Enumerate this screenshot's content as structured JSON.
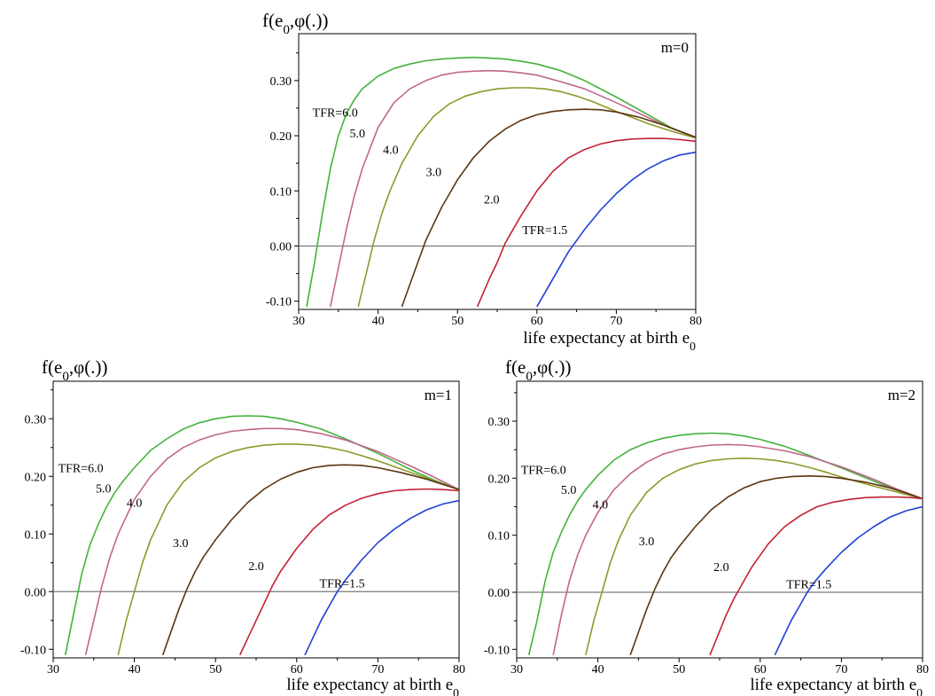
{
  "chart_data": [
    {
      "type": "line",
      "panel_label": "m=0",
      "ylabel": "f(e0,φ(.))",
      "xlabel": "life expectancy at birth e0",
      "xlim": [
        30,
        80
      ],
      "ylim": [
        -0.115,
        0.385
      ],
      "xticks": [
        30,
        40,
        50,
        60,
        70,
        80
      ],
      "yticks": [
        -0.1,
        0.0,
        0.1,
        0.2,
        0.3
      ],
      "ytick_labels": [
        "-0.10",
        "0.00",
        "0.10",
        "0.20",
        "0.30"
      ],
      "zero_line": true,
      "series": [
        {
          "label": "TFR=6.0",
          "color": "#44b23a",
          "label_at": [
            34.6,
            0.243
          ],
          "x": [
            31.0,
            32.0,
            33.0,
            34.0,
            35.0,
            36.0,
            37.0,
            38.0,
            40.0,
            42.0,
            44.0,
            46.0,
            48.0,
            50.0,
            52.0,
            54.0,
            56.0,
            58.0,
            60.0,
            63.0,
            66.0,
            70.0,
            74.0,
            77.0,
            80.0
          ],
          "y": [
            -0.11,
            -0.03,
            0.06,
            0.14,
            0.2,
            0.24,
            0.265,
            0.285,
            0.308,
            0.322,
            0.33,
            0.336,
            0.339,
            0.341,
            0.342,
            0.341,
            0.339,
            0.335,
            0.33,
            0.318,
            0.3,
            0.27,
            0.238,
            0.214,
            0.197
          ]
        },
        {
          "label": "5.0",
          "color": "#c0668c",
          "label_at": [
            37.4,
            0.205
          ],
          "x": [
            34.0,
            35.0,
            36.0,
            37.0,
            38.0,
            40.0,
            42.0,
            44.0,
            46.0,
            48.0,
            50.0,
            52.0,
            54.0,
            56.0,
            58.0,
            60.0,
            63.0,
            66.0,
            70.0,
            74.0,
            77.0,
            80.0
          ],
          "y": [
            -0.11,
            -0.04,
            0.03,
            0.09,
            0.14,
            0.215,
            0.26,
            0.285,
            0.3,
            0.31,
            0.315,
            0.317,
            0.318,
            0.317,
            0.314,
            0.31,
            0.298,
            0.285,
            0.26,
            0.233,
            0.213,
            0.197
          ]
        },
        {
          "label": "4.0",
          "color": "#8c9a2a",
          "label_at": [
            41.6,
            0.175
          ],
          "x": [
            37.5,
            38.5,
            39.5,
            40.5,
            41.5,
            43.0,
            45.0,
            47.0,
            49.0,
            51.0,
            53.0,
            55.0,
            57.0,
            59.0,
            61.0,
            63.0,
            65.0,
            67.0,
            70.0,
            74.0,
            77.0,
            80.0
          ],
          "y": [
            -0.11,
            -0.05,
            0.01,
            0.06,
            0.1,
            0.15,
            0.2,
            0.235,
            0.258,
            0.272,
            0.28,
            0.285,
            0.287,
            0.287,
            0.285,
            0.28,
            0.272,
            0.262,
            0.244,
            0.222,
            0.208,
            0.196
          ]
        },
        {
          "label": "3.0",
          "color": "#5a3510",
          "label_at": [
            47.0,
            0.135
          ],
          "x": [
            43.0,
            44.0,
            45.0,
            46.0,
            47.0,
            48.0,
            50.0,
            52.0,
            54.0,
            56.0,
            58.0,
            60.0,
            62.0,
            64.0,
            66.0,
            68.0,
            70.0,
            73.0,
            76.0,
            78.0,
            80.0
          ],
          "y": [
            -0.11,
            -0.07,
            -0.03,
            0.01,
            0.04,
            0.07,
            0.12,
            0.16,
            0.19,
            0.212,
            0.228,
            0.238,
            0.244,
            0.247,
            0.248,
            0.247,
            0.243,
            0.233,
            0.219,
            0.208,
            0.197
          ]
        },
        {
          "label": "2.0",
          "color": "#c42035",
          "label_at": [
            54.3,
            0.085
          ],
          "x": [
            52.5,
            54.0,
            55.0,
            56.0,
            57.0,
            58.0,
            60.0,
            62.0,
            64.0,
            66.0,
            68.0,
            70.0,
            72.0,
            74.0,
            76.0,
            78.0,
            80.0
          ],
          "y": [
            -0.11,
            -0.06,
            -0.03,
            0.005,
            0.03,
            0.055,
            0.1,
            0.135,
            0.16,
            0.175,
            0.185,
            0.191,
            0.194,
            0.195,
            0.195,
            0.193,
            0.19
          ]
        },
        {
          "label": "TFR=1.5",
          "color": "#2040d8",
          "label_at": [
            61.0,
            0.03
          ],
          "x": [
            60.0,
            61.0,
            62.0,
            63.0,
            64.0,
            65.0,
            66.0,
            68.0,
            70.0,
            72.0,
            74.0,
            76.0,
            78.0,
            80.0
          ],
          "y": [
            -0.11,
            -0.085,
            -0.06,
            -0.035,
            -0.01,
            0.01,
            0.03,
            0.065,
            0.095,
            0.12,
            0.14,
            0.155,
            0.165,
            0.17
          ]
        }
      ]
    },
    {
      "type": "line",
      "panel_label": "m=1",
      "ylabel": "f(e0,φ(.))",
      "xlabel": "life expectancy at birth e0",
      "xlim": [
        30,
        80
      ],
      "ylim": [
        -0.115,
        0.365
      ],
      "xticks": [
        30,
        40,
        50,
        60,
        70,
        80
      ],
      "yticks": [
        -0.1,
        0.0,
        0.1,
        0.2,
        0.3
      ],
      "ytick_labels": [
        "-0.10",
        "0.00",
        "0.10",
        "0.20",
        "0.30"
      ],
      "zero_line": true,
      "series": [
        {
          "label": "TFR=6.0",
          "color": "#44b23a",
          "label_at": [
            33.4,
            0.215
          ],
          "x": [
            31.5,
            32.5,
            33.5,
            34.5,
            35.5,
            36.5,
            37.5,
            38.5,
            40.0,
            42.0,
            44.0,
            46.0,
            48.0,
            50.0,
            52.0,
            54.0,
            56.0,
            58.0,
            60.0,
            63.0,
            66.0,
            70.0,
            74.0,
            77.0,
            80.0
          ],
          "y": [
            -0.11,
            -0.04,
            0.03,
            0.08,
            0.115,
            0.145,
            0.17,
            0.19,
            0.215,
            0.245,
            0.265,
            0.282,
            0.293,
            0.3,
            0.304,
            0.305,
            0.304,
            0.3,
            0.294,
            0.282,
            0.265,
            0.24,
            0.212,
            0.193,
            0.177
          ]
        },
        {
          "label": "5.0",
          "color": "#c0668c",
          "label_at": [
            36.2,
            0.18
          ],
          "x": [
            34.0,
            35.0,
            36.0,
            37.0,
            38.0,
            40.0,
            42.0,
            44.0,
            46.0,
            48.0,
            50.0,
            52.0,
            54.0,
            56.0,
            58.0,
            60.0,
            63.0,
            66.0,
            70.0,
            74.0,
            77.0,
            80.0
          ],
          "y": [
            -0.11,
            -0.05,
            0.01,
            0.06,
            0.1,
            0.16,
            0.2,
            0.23,
            0.25,
            0.263,
            0.272,
            0.278,
            0.281,
            0.283,
            0.283,
            0.281,
            0.274,
            0.263,
            0.243,
            0.218,
            0.198,
            0.177
          ]
        },
        {
          "label": "4.0",
          "color": "#8c9a2a",
          "label_at": [
            40.0,
            0.155
          ],
          "x": [
            38.0,
            39.0,
            40.0,
            41.0,
            42.0,
            44.0,
            46.0,
            48.0,
            50.0,
            52.0,
            54.0,
            56.0,
            58.0,
            60.0,
            62.0,
            64.0,
            66.0,
            68.0,
            70.0,
            74.0,
            77.0,
            80.0
          ],
          "y": [
            -0.11,
            -0.05,
            0.0,
            0.05,
            0.09,
            0.15,
            0.19,
            0.215,
            0.232,
            0.243,
            0.25,
            0.254,
            0.256,
            0.256,
            0.254,
            0.25,
            0.244,
            0.236,
            0.227,
            0.207,
            0.192,
            0.177
          ]
        },
        {
          "label": "3.0",
          "color": "#5a3510",
          "label_at": [
            45.7,
            0.085
          ],
          "x": [
            43.5,
            44.5,
            45.5,
            46.5,
            47.5,
            48.5,
            50.0,
            52.0,
            54.0,
            56.0,
            58.0,
            60.0,
            62.0,
            64.0,
            66.0,
            68.0,
            70.0,
            73.0,
            76.0,
            78.0,
            80.0
          ],
          "y": [
            -0.11,
            -0.07,
            -0.03,
            0.005,
            0.035,
            0.06,
            0.09,
            0.125,
            0.155,
            0.178,
            0.195,
            0.207,
            0.215,
            0.219,
            0.22,
            0.219,
            0.215,
            0.206,
            0.195,
            0.186,
            0.177
          ]
        },
        {
          "label": "2.0",
          "color": "#c42035",
          "label_at": [
            55.0,
            0.045
          ],
          "x": [
            53.0,
            54.0,
            55.0,
            56.0,
            57.0,
            58.0,
            60.0,
            62.0,
            64.0,
            66.0,
            68.0,
            70.0,
            72.0,
            74.0,
            76.0,
            78.0,
            80.0
          ],
          "y": [
            -0.11,
            -0.08,
            -0.05,
            -0.02,
            0.01,
            0.035,
            0.075,
            0.108,
            0.133,
            0.15,
            0.162,
            0.17,
            0.175,
            0.177,
            0.178,
            0.177,
            0.175
          ]
        },
        {
          "label": "TFR=1.5",
          "color": "#2040d8",
          "label_at": [
            65.6,
            0.015
          ],
          "x": [
            61.0,
            62.0,
            63.0,
            64.0,
            65.0,
            66.0,
            68.0,
            70.0,
            72.0,
            74.0,
            76.0,
            78.0,
            80.0
          ],
          "y": [
            -0.11,
            -0.08,
            -0.05,
            -0.025,
            0.0,
            0.02,
            0.055,
            0.085,
            0.108,
            0.127,
            0.142,
            0.152,
            0.158
          ]
        }
      ]
    },
    {
      "type": "line",
      "panel_label": "m=2",
      "ylabel": "f(e0,φ(.))",
      "xlabel": "life expectancy at birth e0",
      "xlim": [
        30,
        80
      ],
      "ylim": [
        -0.115,
        0.37
      ],
      "xticks": [
        30,
        40,
        50,
        60,
        70,
        80
      ],
      "yticks": [
        -0.1,
        0.0,
        0.1,
        0.2,
        0.3
      ],
      "ytick_labels": [
        "-0.10",
        "0.00",
        "0.10",
        "0.20",
        "0.30"
      ],
      "zero_line": true,
      "series": [
        {
          "label": "TFR=6.0",
          "color": "#44b23a",
          "label_at": [
            33.3,
            0.215
          ],
          "x": [
            31.5,
            32.5,
            33.5,
            34.5,
            35.5,
            36.5,
            37.5,
            38.5,
            40.0,
            42.0,
            44.0,
            46.0,
            48.0,
            50.0,
            52.0,
            54.0,
            56.0,
            58.0,
            60.0,
            63.0,
            66.0,
            70.0,
            74.0,
            77.0,
            80.0
          ],
          "y": [
            -0.11,
            -0.05,
            0.02,
            0.07,
            0.105,
            0.135,
            0.16,
            0.18,
            0.205,
            0.232,
            0.25,
            0.262,
            0.27,
            0.275,
            0.278,
            0.279,
            0.278,
            0.274,
            0.268,
            0.256,
            0.24,
            0.218,
            0.195,
            0.178,
            0.164
          ]
        },
        {
          "label": "5.0",
          "color": "#c0668c",
          "label_at": [
            36.4,
            0.18
          ],
          "x": [
            34.5,
            35.5,
            36.5,
            37.5,
            38.5,
            40.0,
            42.0,
            44.0,
            46.0,
            48.0,
            50.0,
            52.0,
            54.0,
            56.0,
            58.0,
            60.0,
            63.0,
            66.0,
            70.0,
            74.0,
            77.0,
            80.0
          ],
          "y": [
            -0.11,
            -0.04,
            0.02,
            0.065,
            0.1,
            0.14,
            0.18,
            0.208,
            0.228,
            0.242,
            0.25,
            0.255,
            0.258,
            0.259,
            0.258,
            0.255,
            0.248,
            0.238,
            0.22,
            0.198,
            0.18,
            0.164
          ]
        },
        {
          "label": "4.0",
          "color": "#8c9a2a",
          "label_at": [
            40.3,
            0.155
          ],
          "x": [
            38.5,
            39.5,
            40.5,
            41.5,
            42.5,
            44.0,
            46.0,
            48.0,
            50.0,
            52.0,
            54.0,
            56.0,
            58.0,
            60.0,
            62.0,
            64.0,
            66.0,
            68.0,
            70.0,
            74.0,
            77.0,
            80.0
          ],
          "y": [
            -0.11,
            -0.05,
            0.0,
            0.05,
            0.09,
            0.135,
            0.175,
            0.2,
            0.215,
            0.225,
            0.231,
            0.234,
            0.235,
            0.234,
            0.231,
            0.226,
            0.219,
            0.211,
            0.202,
            0.186,
            0.175,
            0.164
          ]
        },
        {
          "label": "3.0",
          "color": "#5a3510",
          "label_at": [
            46.0,
            0.09
          ],
          "x": [
            44.0,
            45.0,
            46.0,
            47.0,
            48.0,
            49.0,
            50.0,
            52.0,
            54.0,
            56.0,
            58.0,
            60.0,
            62.0,
            64.0,
            66.0,
            68.0,
            70.0,
            73.0,
            76.0,
            78.0,
            80.0
          ],
          "y": [
            -0.11,
            -0.07,
            -0.03,
            0.005,
            0.035,
            0.06,
            0.08,
            0.115,
            0.145,
            0.167,
            0.183,
            0.194,
            0.2,
            0.203,
            0.204,
            0.203,
            0.2,
            0.193,
            0.183,
            0.174,
            0.164
          ]
        },
        {
          "label": "2.0",
          "color": "#c42035",
          "label_at": [
            55.2,
            0.045
          ],
          "x": [
            53.8,
            54.8,
            55.8,
            56.8,
            57.8,
            59.0,
            61.0,
            63.0,
            65.0,
            67.0,
            69.0,
            71.0,
            73.0,
            75.0,
            77.0,
            78.5,
            80.0
          ],
          "y": [
            -0.11,
            -0.075,
            -0.04,
            -0.01,
            0.015,
            0.045,
            0.085,
            0.115,
            0.135,
            0.15,
            0.158,
            0.163,
            0.166,
            0.167,
            0.167,
            0.166,
            0.164
          ]
        },
        {
          "label": "TFR=1.5",
          "color": "#2040d8",
          "label_at": [
            66.0,
            0.015
          ],
          "x": [
            61.8,
            62.8,
            63.8,
            64.8,
            65.8,
            66.8,
            68.0,
            70.0,
            72.0,
            74.0,
            76.0,
            78.0,
            80.0
          ],
          "y": [
            -0.11,
            -0.08,
            -0.05,
            -0.025,
            0.0,
            0.02,
            0.04,
            0.07,
            0.095,
            0.115,
            0.132,
            0.143,
            0.15
          ]
        }
      ]
    }
  ]
}
